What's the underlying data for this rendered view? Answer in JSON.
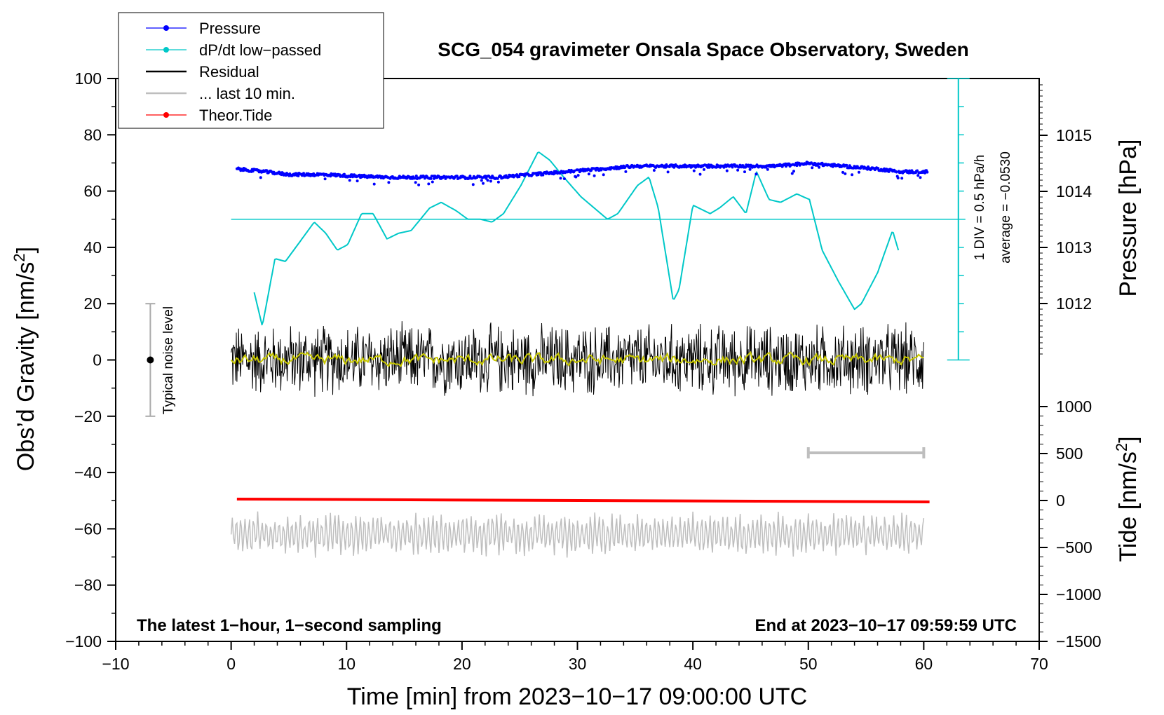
{
  "chart_data": {
    "type": "line",
    "title": "SCG_054 gravimeter Onsala Space Observatory, Sweden",
    "xlabel": "Time [min] from 2023−10−17 09:00:00 UTC",
    "ylabel_left_main": "Obs’d Gravity [nm/s",
    "ylabel_left_sup": "2",
    "ylabel_left_end": "]",
    "ylabel_right_pressure": "Pressure [hPa]",
    "ylabel_right_tide_main": "Tide [nm/s",
    "ylabel_right_tide_sup": "2",
    "ylabel_right_tide_end": "]",
    "xlim": [
      -10,
      70
    ],
    "ylim": [
      -100,
      100
    ],
    "x_ticks": [
      -10,
      0,
      10,
      20,
      30,
      40,
      50,
      60,
      70
    ],
    "x_tick_labels": [
      "−10",
      "0",
      "10",
      "20",
      "30",
      "40",
      "50",
      "60",
      "70"
    ],
    "y_ticks": [
      -100,
      -80,
      -60,
      -40,
      -20,
      0,
      20,
      40,
      60,
      80,
      100
    ],
    "y_tick_labels": [
      "−100",
      "−80",
      "−60",
      "−40",
      "−20",
      "0",
      "20",
      "40",
      "60",
      "80",
      "100"
    ],
    "pressure_axis": {
      "ticks": [
        1012,
        1013,
        1014,
        1015
      ],
      "tick_labels": [
        "1012",
        "1013",
        "1014",
        "1015"
      ],
      "range": [
        1011,
        1016
      ]
    },
    "tide_axis": {
      "ticks": [
        -1500,
        -1000,
        -500,
        0,
        500,
        1000
      ],
      "tick_labels": [
        "−1500",
        "−1000",
        "−500",
        "0",
        "500",
        "1000"
      ],
      "range": [
        -1500,
        1000
      ]
    },
    "legend": {
      "position": "top-left",
      "entries": [
        {
          "label": "Pressure",
          "color": "#0000ff",
          "marker": true
        },
        {
          "label": "dP/dt low−passed",
          "color": "#00c8c8",
          "marker": true
        },
        {
          "label": "Residual",
          "color": "#000000",
          "marker": false
        },
        {
          "label": "... last 10 min.",
          "color": "#bebebe",
          "marker": false
        },
        {
          "label": "Theor.Tide",
          "color": "#ff0000",
          "marker": true
        }
      ]
    },
    "series": [
      {
        "name": "Pressure",
        "color": "#0000ff",
        "axis": "pressure",
        "x": [
          0.5,
          3,
          5,
          8,
          11,
          14,
          17,
          20,
          23,
          26,
          29,
          32,
          35,
          38,
          41,
          44,
          47,
          50,
          53,
          56,
          58,
          60.3
        ],
        "values": [
          1014.4,
          1014.35,
          1014.3,
          1014.3,
          1014.27,
          1014.25,
          1014.25,
          1014.25,
          1014.25,
          1014.3,
          1014.35,
          1014.4,
          1014.45,
          1014.45,
          1014.45,
          1014.45,
          1014.45,
          1014.5,
          1014.45,
          1014.4,
          1014.35,
          1014.35
        ]
      },
      {
        "name": "dP/dt low−passed",
        "color": "#00c8c8",
        "axis": "left",
        "x": [
          2.0,
          2.7,
          3.8,
          4.7,
          5.6,
          7.2,
          8.2,
          9.2,
          10.1,
          11.3,
          12.3,
          13.5,
          14.5,
          15.6,
          17.2,
          18.2,
          19.5,
          20.5,
          21.6,
          22.6,
          23.6,
          25.1,
          26.6,
          27.6,
          28.8,
          30.3,
          32.6,
          33.5,
          35.2,
          36.2,
          37.0,
          38.3,
          38.8,
          40.0,
          41.5,
          42.3,
          43.5,
          44.6,
          45.5,
          46.6,
          47.6,
          49.0,
          50.1,
          51.2,
          52.6,
          54.0,
          54.6,
          56.0,
          57.3,
          57.8
        ],
        "values": [
          24,
          12,
          36,
          35,
          40,
          49,
          45,
          39,
          41,
          52,
          52,
          43,
          45,
          46,
          54,
          56,
          53,
          50,
          50,
          49,
          52,
          62,
          74,
          71,
          65,
          58,
          50,
          52,
          62,
          65,
          54,
          21,
          25,
          55,
          52,
          54,
          58,
          52,
          67,
          57,
          56,
          59,
          57,
          39,
          28,
          18,
          20,
          31,
          46,
          39
        ]
      },
      {
        "name": "Residual",
        "color": "#000000",
        "axis": "left",
        "x_range": [
          0,
          60
        ],
        "typical_amplitude": 12,
        "min": -16,
        "max": 15
      },
      {
        "name": "Residual smoothed",
        "color": "#c8c800",
        "axis": "left",
        "x_range": [
          0,
          60
        ],
        "typical_amplitude": 1.5
      },
      {
        "name": "... last 10 min.",
        "color": "#bebebe",
        "axis": "left",
        "x_range": [
          0,
          60
        ],
        "offset": -62,
        "typical_amplitude": 7
      },
      {
        "name": "Theor.Tide",
        "color": "#ff0000",
        "axis": "tide",
        "x": [
          0.5,
          60.5
        ],
        "values": [
          15,
          -15
        ]
      }
    ],
    "pressure_reference": {
      "scale_label": "1 DIV = 0.5 hPa/h",
      "average_label": "average = −0.0530",
      "zero_line_y": 50,
      "scale_bar_top": 100,
      "scale_bar_bottom": 0,
      "scale_bar_x": 63
    },
    "noise_indicator": {
      "label": "Typical noise level",
      "x": -7,
      "center": 0,
      "low": -20,
      "high": 20
    },
    "last_10_min_bar": {
      "x_start": 50,
      "x_end": 60,
      "y": -33
    },
    "annotation_left": "The latest 1−hour, 1−second sampling",
    "annotation_right": "End at 2023−10−17 09:59:59 UTC"
  }
}
